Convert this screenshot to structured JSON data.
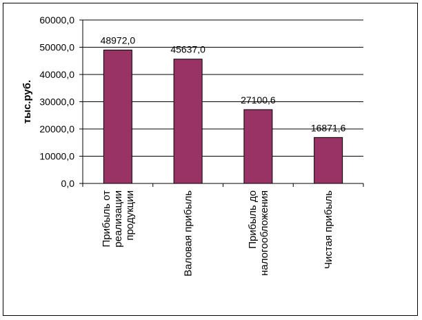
{
  "chart_data": {
    "type": "bar",
    "categories": [
      "Прибыль от реализации продукции",
      "Валовая прибыль",
      "Прибыль до налогообложения",
      "Чистая прибыль"
    ],
    "category_lines": [
      [
        "Прибыль от",
        "реализации",
        "продукции"
      ],
      [
        "Валовая прибыль"
      ],
      [
        "Прибыль до",
        "налогообложения"
      ],
      [
        "Чистая прибыль"
      ]
    ],
    "values": [
      48972.0,
      45637.0,
      27100.6,
      16871.6
    ],
    "data_labels": [
      "48972,0",
      "45637,0",
      "27100,6",
      "16871,6"
    ],
    "title": "",
    "xlabel": "",
    "ylabel": "тыс.руб.",
    "ylim": [
      0,
      60000
    ],
    "yticks": [
      0,
      10000,
      20000,
      30000,
      40000,
      50000,
      60000
    ],
    "ytick_labels": [
      "0,0",
      "10000,0",
      "20000,0",
      "30000,0",
      "40000,0",
      "50000,0",
      "60000,0"
    ],
    "grid": true,
    "legend": "none",
    "colors": {
      "bar_fill": "#993366",
      "bar_stroke": "#000000",
      "grid": "#000000",
      "axis": "#000000"
    }
  }
}
